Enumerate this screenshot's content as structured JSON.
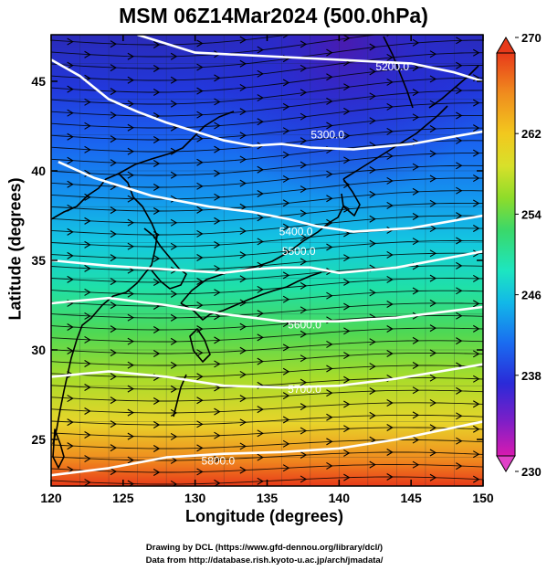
{
  "title": "MSM 06Z14Mar2024 (500.0hPa)",
  "x_axis": {
    "label": "Longitude (degrees)",
    "range": [
      120,
      150
    ],
    "ticks": [
      "120",
      "125",
      "130",
      "135",
      "140",
      "145",
      "150"
    ]
  },
  "y_axis": {
    "label": "Latitude  (degrees)",
    "range": [
      22.4,
      47.6
    ],
    "ticks": [
      "25",
      "30",
      "35",
      "40",
      "45"
    ]
  },
  "colorbar": {
    "min": 230,
    "max": 270,
    "tick_labels": [
      "270",
      "262",
      "254",
      "246",
      "238",
      "230"
    ],
    "colors": [
      "#d81ab0",
      "#7a1fc8",
      "#2a2ad8",
      "#1a6cf0",
      "#12b8e8",
      "#1de6c0",
      "#3ad86a",
      "#8edc2a",
      "#d8e02a",
      "#f2c81e",
      "#f08c1e",
      "#e83a1a"
    ]
  },
  "contours": {
    "color": "#ffffff",
    "labels": [
      "5200.0",
      "5300.0",
      "5400.0",
      "5500.0",
      "5600.0",
      "5700.0",
      "5800.0"
    ]
  },
  "credits": {
    "line1": "Drawing by DCL (https://www.gfd-dennou.org/library/dcl/)",
    "line2": "Data from http://database.rish.kyoto-u.ac.jp/arch/jmadata/"
  }
}
